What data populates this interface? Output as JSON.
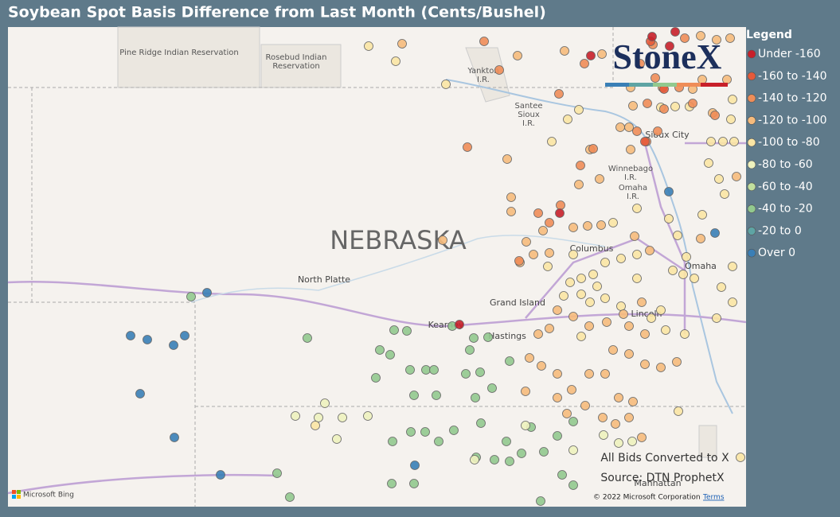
{
  "header": {
    "title": "Soybean Spot Basis Difference from Last Month (Cents/Bushel)"
  },
  "legend": {
    "title": "Legend",
    "items": [
      {
        "label": "Under -160",
        "color": "#c8202a"
      },
      {
        "label": "-160 to -140",
        "color": "#e55a3a"
      },
      {
        "label": "-140 to -120",
        "color": "#ef8d58"
      },
      {
        "label": "-120 to -100",
        "color": "#f6bb7c"
      },
      {
        "label": "-100 to -80",
        "color": "#fbe6a4"
      },
      {
        "label": "-80 to -60",
        "color": "#eef2be"
      },
      {
        "label": "-60 to -40",
        "color": "#c2e09e"
      },
      {
        "label": "-40 to -20",
        "color": "#92c98e"
      },
      {
        "label": "-20 to 0",
        "color": "#5ea4a4"
      },
      {
        "label": "Over 0",
        "color": "#3a7fb6"
      }
    ]
  },
  "logo": {
    "text": "StoneX"
  },
  "map_labels": {
    "pine_ridge": "Pine Ridge Indian Reservation",
    "rosebud_1": "Rosebud Indian",
    "rosebud_2": "Reservation",
    "yankton_1": "Yankton",
    "yankton_2": "I.R.",
    "santee_1": "Santee",
    "santee_2": "Sioux",
    "santee_3": "I.R.",
    "sioux_city": "Sioux City",
    "winnebago_1": "Winnebago",
    "winnebago_2": "I.R.",
    "omaha_ir_1": "Omaha",
    "omaha_ir_2": "I.R.",
    "state": "NEBRASKA",
    "columbus": "Columbus",
    "omaha": "Omaha",
    "north_platte": "North Platte",
    "grand_island": "Grand Island",
    "kearney": "Kearney",
    "hastings": "Hastings",
    "lincoln": "Lincoln",
    "manhattan": "Manhattan"
  },
  "notes": {
    "conversion": "All Bids Converted to X",
    "source": "Source: DTN ProphetX"
  },
  "attribution": {
    "bing": "Microsoft Bing",
    "copyright": "© 2022 Microsoft Corporation",
    "terms": "Terms"
  }
}
